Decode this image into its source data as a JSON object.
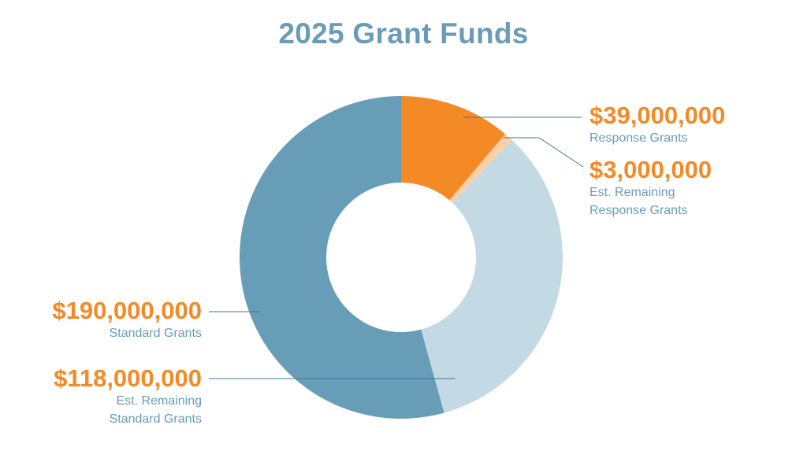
{
  "chart_data": {
    "type": "pie",
    "donut": true,
    "title": "2025 Grant Funds",
    "series": [
      {
        "name": "Response Grants",
        "amount_label": "$39,000,000",
        "lines": [
          "Response Grants"
        ],
        "value": 39000000,
        "color": "#f48a26"
      },
      {
        "name": "Est. Remaining Response Grants",
        "amount_label": "$3,000,000",
        "lines": [
          "Est. Remaining",
          "Response Grants"
        ],
        "value": 3000000,
        "color": "#fccfa4"
      },
      {
        "name": "Est. Remaining Standard Grants",
        "amount_label": "$118,000,000",
        "lines": [
          "Est. Remaining",
          "Standard Grants"
        ],
        "value": 118000000,
        "color": "#c3d9e4"
      },
      {
        "name": "Standard Grants",
        "amount_label": "$190,000,000",
        "lines": [
          "Standard Grants"
        ],
        "value": 190000000,
        "color": "#689db8"
      }
    ]
  }
}
